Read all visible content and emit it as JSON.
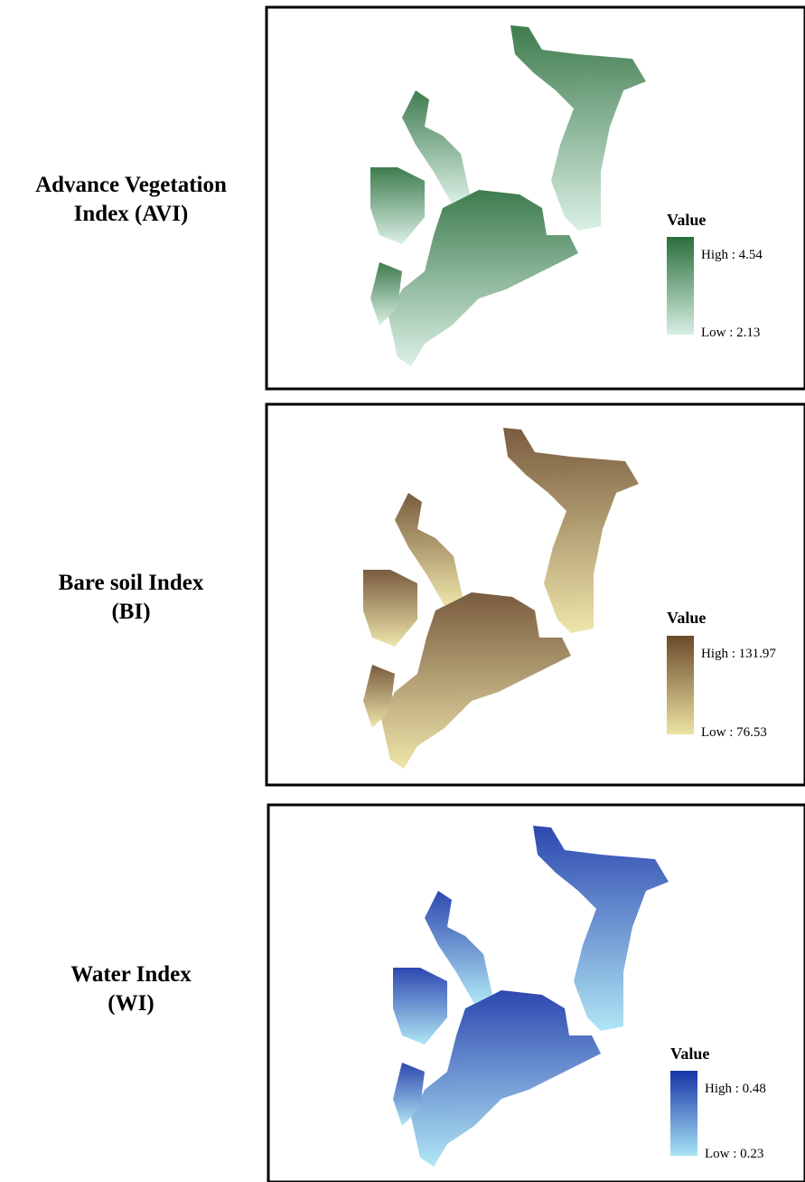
{
  "panels": [
    {
      "label": [
        "Advance Vegetation",
        "Index  (AVI)"
      ],
      "legend": {
        "title": "Value",
        "high": "High : 4.54",
        "low": "Low : 2.13"
      }
    },
    {
      "label": [
        "Bare soil Index",
        "(BI)"
      ],
      "legend": {
        "title": "Value",
        "high": "High : 131.97",
        "low": "Low : 76.53"
      }
    },
    {
      "label": [
        "Water Index",
        "(WI)"
      ],
      "legend": {
        "title": "Value",
        "high": "High : 0.48",
        "low": "Low : 0.23"
      }
    }
  ]
}
